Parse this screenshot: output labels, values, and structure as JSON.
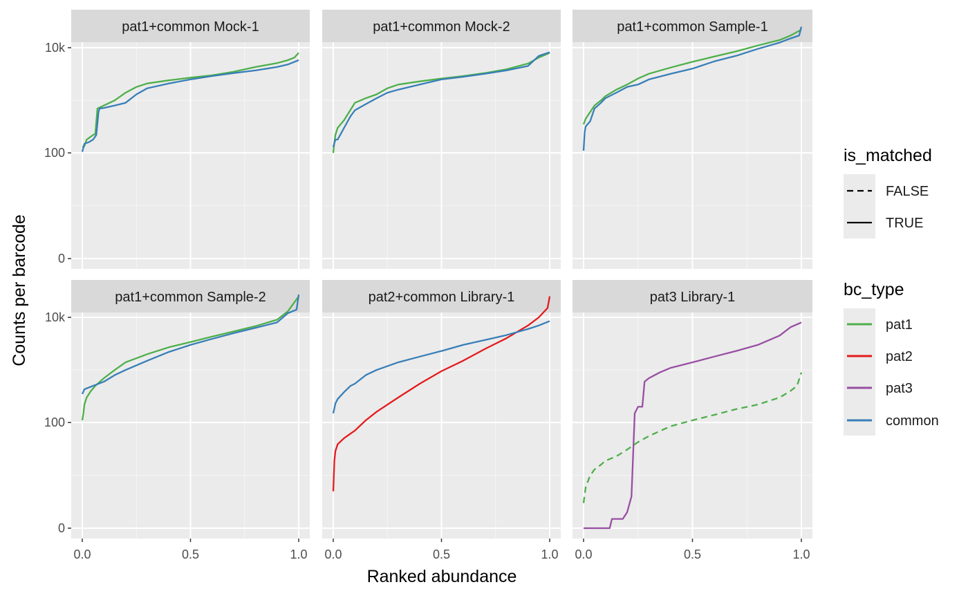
{
  "chart_data": {
    "type": "line",
    "facet_layout": "2x3",
    "xlabel": "Ranked abundance",
    "ylabel": "Counts per barcode",
    "x_ticks": [
      0.0,
      0.5,
      1.0
    ],
    "x_tick_labels": [
      "0.0",
      "0.5",
      "1.0"
    ],
    "y_scale": "pseudo-log",
    "y_ticks": [
      0,
      100,
      10000
    ],
    "y_tick_labels": [
      "0",
      "100",
      "10k"
    ],
    "xlim": [
      0,
      1
    ],
    "grid": true,
    "legends": [
      {
        "title": "is_matched",
        "kind": "linetype",
        "entries": [
          {
            "label": "FALSE",
            "dash": "dashed"
          },
          {
            "label": "TRUE",
            "dash": "solid"
          }
        ]
      },
      {
        "title": "bc_type",
        "kind": "color",
        "entries": [
          {
            "label": "pat1",
            "color": "#4DAF4A"
          },
          {
            "label": "pat2",
            "color": "#E41A1C"
          },
          {
            "label": "pat3",
            "color": "#984EA3"
          },
          {
            "label": "common",
            "color": "#377EB8"
          }
        ]
      }
    ],
    "panels": [
      {
        "title": "pat1+common Mock-1",
        "series": [
          {
            "bc_type": "pat1",
            "is_matched": "TRUE",
            "color": "#4DAF4A",
            "dash": "solid",
            "x": [
              0,
              0.01,
              0.02,
              0.05,
              0.06,
              0.07,
              0.1,
              0.15,
              0.2,
              0.25,
              0.3,
              0.4,
              0.5,
              0.6,
              0.7,
              0.8,
              0.9,
              0.95,
              0.98,
              1.0
            ],
            "y": [
              130,
              135,
              180,
              220,
              230,
              700,
              800,
              1000,
              1400,
              1800,
              2100,
              2400,
              2700,
              3000,
              3500,
              4300,
              5100,
              5800,
              6500,
              8000
            ]
          },
          {
            "bc_type": "common",
            "is_matched": "TRUE",
            "color": "#377EB8",
            "dash": "solid",
            "x": [
              0,
              0.01,
              0.03,
              0.05,
              0.065,
              0.075,
              0.08,
              0.1,
              0.15,
              0.2,
              0.25,
              0.3,
              0.4,
              0.5,
              0.6,
              0.7,
              0.8,
              0.9,
              0.95,
              1.0
            ],
            "y": [
              105,
              150,
              160,
              180,
              220,
              600,
              700,
              720,
              800,
              900,
              1300,
              1700,
              2100,
              2500,
              2900,
              3300,
              3700,
              4300,
              4800,
              5800
            ]
          }
        ]
      },
      {
        "title": "pat1+common Mock-2",
        "series": [
          {
            "bc_type": "pat1",
            "is_matched": "TRUE",
            "color": "#4DAF4A",
            "dash": "solid",
            "x": [
              0,
              0.005,
              0.01,
              0.02,
              0.05,
              0.1,
              0.15,
              0.2,
              0.25,
              0.3,
              0.4,
              0.5,
              0.6,
              0.7,
              0.8,
              0.9,
              0.95,
              1.0
            ],
            "y": [
              100,
              160,
              220,
              300,
              420,
              900,
              1100,
              1300,
              1700,
              2000,
              2300,
              2600,
              2900,
              3300,
              3900,
              5000,
              6500,
              8000
            ]
          },
          {
            "bc_type": "common",
            "is_matched": "TRUE",
            "color": "#377EB8",
            "dash": "solid",
            "x": [
              0,
              0.01,
              0.02,
              0.05,
              0.08,
              0.1,
              0.15,
              0.2,
              0.25,
              0.3,
              0.4,
              0.5,
              0.6,
              0.7,
              0.8,
              0.9,
              0.95,
              1.0
            ],
            "y": [
              130,
              180,
              180,
              300,
              500,
              650,
              850,
              1100,
              1400,
              1600,
              2000,
              2500,
              2800,
              3200,
              3700,
              4500,
              7000,
              8200
            ]
          }
        ]
      },
      {
        "title": "pat1+common Sample-1",
        "series": [
          {
            "bc_type": "pat1",
            "is_matched": "TRUE",
            "color": "#4DAF4A",
            "dash": "solid",
            "x": [
              0,
              0.01,
              0.03,
              0.05,
              0.08,
              0.1,
              0.15,
              0.2,
              0.25,
              0.3,
              0.4,
              0.5,
              0.6,
              0.7,
              0.8,
              0.9,
              0.95,
              1.0
            ],
            "y": [
              350,
              450,
              600,
              800,
              1000,
              1200,
              1600,
              2000,
              2600,
              3200,
              4200,
              5400,
              6800,
              8500,
              11000,
              14000,
              17000,
              22000
            ]
          },
          {
            "bc_type": "common",
            "is_matched": "TRUE",
            "color": "#377EB8",
            "dash": "solid",
            "x": [
              0,
              0.005,
              0.01,
              0.03,
              0.05,
              0.08,
              0.1,
              0.15,
              0.2,
              0.25,
              0.3,
              0.4,
              0.5,
              0.6,
              0.7,
              0.8,
              0.9,
              0.95,
              0.99,
              1.0
            ],
            "y": [
              110,
              250,
              320,
              400,
              700,
              900,
              1100,
              1400,
              1800,
              2000,
              2500,
              3200,
              4000,
              5500,
              7000,
              9500,
              12500,
              15000,
              17000,
              25000
            ]
          }
        ]
      },
      {
        "title": "pat1+common Sample-2",
        "series": [
          {
            "bc_type": "pat1",
            "is_matched": "TRUE",
            "color": "#4DAF4A",
            "dash": "solid",
            "x": [
              0,
              0.005,
              0.01,
              0.02,
              0.04,
              0.06,
              0.1,
              0.15,
              0.2,
              0.3,
              0.4,
              0.5,
              0.6,
              0.7,
              0.8,
              0.9,
              0.95,
              1.0
            ],
            "y": [
              110,
              150,
              220,
              300,
              400,
              500,
              700,
              1000,
              1400,
              2000,
              2700,
              3400,
              4300,
              5400,
              6800,
              9000,
              13000,
              25000
            ]
          },
          {
            "bc_type": "common",
            "is_matched": "TRUE",
            "color": "#377EB8",
            "dash": "solid",
            "x": [
              0,
              0.01,
              0.05,
              0.1,
              0.15,
              0.2,
              0.3,
              0.4,
              0.5,
              0.6,
              0.7,
              0.8,
              0.9,
              0.95,
              0.99,
              1.0
            ],
            "y": [
              350,
              430,
              500,
              600,
              800,
              1000,
              1500,
              2200,
              3000,
              3900,
              5000,
              6300,
              8000,
              12000,
              14000,
              27000
            ]
          }
        ]
      },
      {
        "title": "pat2+common Library-1",
        "series": [
          {
            "bc_type": "pat2",
            "is_matched": "TRUE",
            "color": "#E41A1C",
            "dash": "solid",
            "x": [
              0,
              0.005,
              0.01,
              0.02,
              0.05,
              0.1,
              0.15,
              0.2,
              0.3,
              0.4,
              0.5,
              0.6,
              0.7,
              0.8,
              0.9,
              0.95,
              0.99,
              1.0
            ],
            "y": [
              4,
              18,
              28,
              38,
              50,
              70,
              110,
              160,
              300,
              550,
              950,
              1500,
              2500,
              4000,
              7000,
              10000,
              15000,
              25000
            ]
          },
          {
            "bc_type": "common",
            "is_matched": "TRUE",
            "color": "#377EB8",
            "dash": "solid",
            "x": [
              0,
              0.01,
              0.02,
              0.05,
              0.08,
              0.1,
              0.15,
              0.2,
              0.3,
              0.4,
              0.5,
              0.6,
              0.7,
              0.8,
              0.9,
              0.95,
              1.0
            ],
            "y": [
              150,
              230,
              280,
              380,
              500,
              550,
              800,
              1000,
              1400,
              1800,
              2300,
              3000,
              3700,
              4600,
              6000,
              7000,
              8500
            ]
          }
        ]
      },
      {
        "title": "pat3 Library-1",
        "series": [
          {
            "bc_type": "pat1",
            "is_matched": "FALSE",
            "color": "#4DAF4A",
            "dash": "dashed",
            "x": [
              0,
              0.01,
              0.03,
              0.05,
              0.08,
              0.1,
              0.15,
              0.2,
              0.25,
              0.3,
              0.4,
              0.5,
              0.6,
              0.7,
              0.8,
              0.9,
              0.95,
              0.98,
              1.0
            ],
            "y": [
              2,
              5,
              9,
              12,
              15,
              18,
              22,
              30,
              42,
              55,
              85,
              110,
              140,
              180,
              220,
              300,
              400,
              500,
              900
            ]
          },
          {
            "bc_type": "pat3",
            "is_matched": "TRUE",
            "color": "#984EA3",
            "dash": "solid",
            "x": [
              0,
              0.12,
              0.13,
              0.18,
              0.2,
              0.22,
              0.235,
              0.25,
              0.27,
              0.28,
              0.3,
              0.35,
              0.4,
              0.5,
              0.6,
              0.7,
              0.8,
              0.9,
              0.95,
              1.0
            ],
            "y": [
              0,
              0,
              0.5,
              0.5,
              1,
              3,
              150,
              200,
              200,
              600,
              700,
              900,
              1100,
              1400,
              1800,
              2300,
              3000,
              4500,
              6500,
              8000
            ]
          }
        ]
      }
    ]
  }
}
